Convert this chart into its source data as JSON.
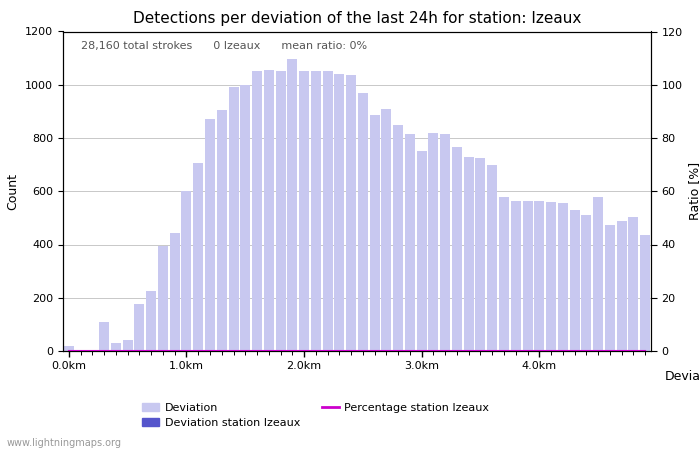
{
  "title": "Detections per deviation of the last 24h for station: Izeaux",
  "xlabel": "Deviations",
  "ylabel_left": "Count",
  "ylabel_right": "Ratio [%]",
  "annotation": "28,160 total strokes      0 Izeaux      mean ratio: 0%",
  "watermark": "www.lightningmaps.org",
  "ylim_left": [
    0,
    1200
  ],
  "ylim_right": [
    0,
    120
  ],
  "yticks_left": [
    0,
    200,
    400,
    600,
    800,
    1000,
    1200
  ],
  "yticks_right": [
    0,
    20,
    40,
    60,
    80,
    100,
    120
  ],
  "xtick_labels": [
    "0.0km",
    "1.0km",
    "2.0km",
    "3.0km",
    "4.0km"
  ],
  "xtick_positions": [
    0,
    10,
    20,
    30,
    40
  ],
  "bar_color_light": "#c8c8f0",
  "bar_color_dark": "#5555cc",
  "line_color": "#cc00cc",
  "background_color": "#ffffff",
  "grid_color": "#c8c8c8",
  "n_bars": 50,
  "bar_values": [
    20,
    5,
    5,
    110,
    30,
    40,
    175,
    225,
    395,
    445,
    600,
    705,
    870,
    905,
    990,
    1000,
    1050,
    1055,
    1050,
    1095,
    1050,
    1050,
    1050,
    1040,
    1035,
    970,
    885,
    910,
    850,
    815,
    750,
    820,
    815,
    765,
    730,
    725,
    700,
    580,
    565,
    565,
    565,
    560,
    555,
    530,
    510,
    580,
    475,
    490,
    505,
    435
  ],
  "station_bar_values": [
    0,
    0,
    0,
    0,
    0,
    0,
    0,
    0,
    0,
    0,
    0,
    0,
    0,
    0,
    0,
    0,
    0,
    0,
    0,
    0,
    0,
    0,
    0,
    0,
    0,
    0,
    0,
    0,
    0,
    0,
    0,
    0,
    0,
    0,
    0,
    0,
    0,
    0,
    0,
    0,
    0,
    0,
    0,
    0,
    0,
    0,
    0,
    0,
    0,
    0
  ],
  "percentage_values": [
    0,
    0,
    0,
    0,
    0,
    0,
    0,
    0,
    0,
    0,
    0,
    0,
    0,
    0,
    0,
    0,
    0,
    0,
    0,
    0,
    0,
    0,
    0,
    0,
    0,
    0,
    0,
    0,
    0,
    0,
    0,
    0,
    0,
    0,
    0,
    0,
    0,
    0,
    0,
    0,
    0,
    0,
    0,
    0,
    0,
    0,
    0,
    0,
    0,
    0
  ]
}
